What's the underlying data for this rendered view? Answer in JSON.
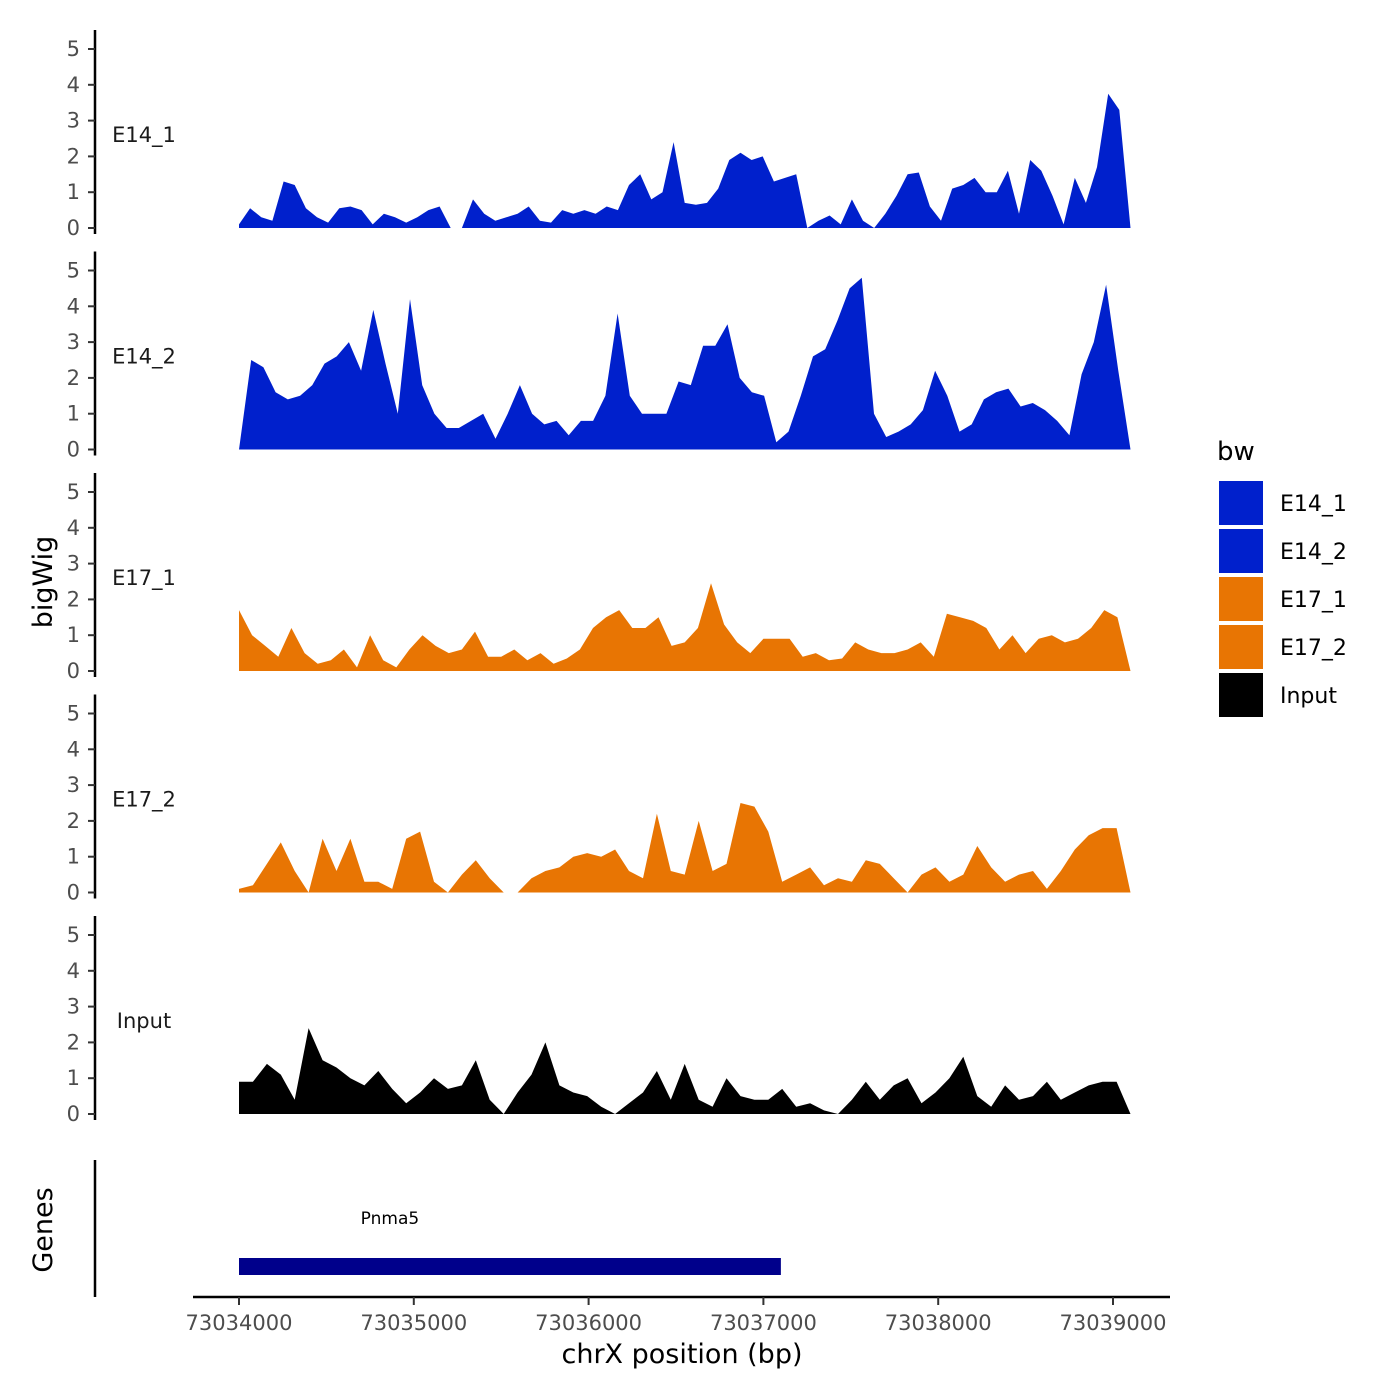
{
  "chart_data": {
    "type": "area",
    "title": "",
    "ylabel": "bigWig",
    "xlabel": "chrX position (bp)",
    "ylim": [
      0,
      5.5
    ],
    "yticks": [
      0,
      1,
      2,
      3,
      4,
      5
    ],
    "xlim": [
      73033850,
      73039120
    ],
    "xticks": [
      73034000,
      73035000,
      73036000,
      73037000,
      73038000,
      73039000
    ],
    "xtick_labels": [
      "73034000",
      "73035000",
      "73036000",
      "73037000",
      "73038000",
      "73039000"
    ],
    "x_step": 100,
    "x_start": 73034000,
    "x_end": 73039100,
    "legend": {
      "title": "bw",
      "position": "right",
      "entries": [
        "E14_1",
        "E14_2",
        "E17_1",
        "E17_2",
        "Input"
      ]
    },
    "colors": {
      "E14_1": "#0020CC",
      "E14_2": "#0020CC",
      "E17_1": "#E87503",
      "E17_2": "#E87503",
      "Input": "#000000"
    },
    "series": [
      {
        "name": "E14_1",
        "values": [
          0.1,
          0.55,
          0.3,
          0.2,
          1.3,
          1.2,
          0.55,
          0.3,
          0.15,
          0.55,
          0.6,
          0.5,
          0.1,
          0.4,
          0.3,
          0.15,
          0.3,
          0.5,
          0.6,
          0.0,
          0.0,
          0.8,
          0.4,
          0.2,
          0.3,
          0.4,
          0.6,
          0.2,
          0.15,
          0.5,
          0.4,
          0.5,
          0.4,
          0.6,
          0.5,
          1.2,
          1.5,
          0.8,
          1.0,
          2.4,
          0.7,
          0.65,
          0.7,
          1.1,
          1.9,
          2.1,
          1.9,
          2.0,
          1.3,
          1.4,
          1.5,
          0.0,
          0.2,
          0.35,
          0.1,
          0.8,
          0.2,
          0.0,
          0.4,
          0.9,
          1.5,
          1.55,
          0.6,
          0.2,
          1.1,
          1.2,
          1.4,
          1.0,
          1.0,
          1.6,
          0.4,
          1.9,
          1.6,
          0.9,
          0.1,
          1.4,
          0.7,
          1.7,
          3.75,
          3.3,
          0.0
        ]
      },
      {
        "name": "E14_2",
        "values": [
          0.0,
          2.5,
          2.3,
          1.6,
          1.4,
          1.5,
          1.8,
          2.4,
          2.6,
          3.0,
          2.2,
          3.9,
          2.4,
          1.0,
          4.2,
          1.8,
          1.0,
          0.6,
          0.6,
          0.8,
          1.0,
          0.3,
          1.0,
          1.8,
          1.0,
          0.7,
          0.8,
          0.4,
          0.8,
          0.8,
          1.5,
          3.8,
          1.5,
          1.0,
          1.0,
          1.0,
          1.9,
          1.8,
          2.9,
          2.9,
          3.5,
          2.0,
          1.6,
          1.5,
          0.2,
          0.5,
          1.5,
          2.6,
          2.8,
          3.6,
          4.5,
          4.8,
          1.0,
          0.35,
          0.5,
          0.7,
          1.1,
          2.2,
          1.5,
          0.5,
          0.7,
          1.4,
          1.6,
          1.7,
          1.2,
          1.3,
          1.1,
          0.8,
          0.4,
          2.1,
          3.0,
          4.6,
          2.2,
          0.0
        ]
      },
      {
        "name": "E17_1",
        "values": [
          1.7,
          1.0,
          0.7,
          0.4,
          1.2,
          0.5,
          0.2,
          0.3,
          0.6,
          0.1,
          1.0,
          0.3,
          0.1,
          0.6,
          1.0,
          0.7,
          0.5,
          0.6,
          1.1,
          0.4,
          0.4,
          0.6,
          0.3,
          0.5,
          0.2,
          0.35,
          0.6,
          1.2,
          1.5,
          1.7,
          1.2,
          1.2,
          1.5,
          0.7,
          0.8,
          1.2,
          2.45,
          1.3,
          0.8,
          0.5,
          0.9,
          0.9,
          0.9,
          0.4,
          0.5,
          0.3,
          0.35,
          0.8,
          0.6,
          0.5,
          0.5,
          0.6,
          0.8,
          0.4,
          1.6,
          1.5,
          1.4,
          1.2,
          0.6,
          1.0,
          0.5,
          0.9,
          1.0,
          0.8,
          0.9,
          1.2,
          1.7,
          1.5,
          0.0
        ]
      },
      {
        "name": "E17_2",
        "values": [
          0.1,
          0.2,
          0.8,
          1.4,
          0.6,
          0.0,
          1.5,
          0.6,
          1.5,
          0.3,
          0.3,
          0.1,
          1.5,
          1.7,
          0.3,
          0.0,
          0.5,
          0.9,
          0.4,
          0.0,
          0.0,
          0.4,
          0.6,
          0.7,
          1.0,
          1.1,
          1.0,
          1.2,
          0.6,
          0.4,
          2.2,
          0.6,
          0.5,
          2.0,
          0.6,
          0.8,
          2.5,
          2.4,
          1.7,
          0.3,
          0.5,
          0.7,
          0.2,
          0.4,
          0.3,
          0.9,
          0.8,
          0.4,
          0.0,
          0.5,
          0.7,
          0.3,
          0.5,
          1.3,
          0.7,
          0.3,
          0.5,
          0.6,
          0.1,
          0.6,
          1.2,
          1.6,
          1.8,
          1.8,
          0.0
        ]
      },
      {
        "name": "Input",
        "values": [
          0.9,
          0.9,
          1.4,
          1.1,
          0.4,
          2.4,
          1.5,
          1.3,
          1.0,
          0.8,
          1.2,
          0.7,
          0.3,
          0.6,
          1.0,
          0.7,
          0.8,
          1.5,
          0.4,
          0.0,
          0.6,
          1.1,
          2.0,
          0.8,
          0.6,
          0.5,
          0.2,
          0.0,
          0.3,
          0.6,
          1.2,
          0.4,
          1.4,
          0.4,
          0.2,
          1.0,
          0.5,
          0.4,
          0.4,
          0.7,
          0.2,
          0.3,
          0.1,
          0.0,
          0.4,
          0.9,
          0.4,
          0.8,
          1.0,
          0.3,
          0.6,
          1.0,
          1.6,
          0.5,
          0.2,
          0.8,
          0.4,
          0.5,
          0.9,
          0.4,
          0.6,
          0.8,
          0.9,
          0.9,
          0.0
        ]
      }
    ],
    "genes": {
      "label": "Genes",
      "items": [
        {
          "name": "Pnma5",
          "start": 73034000,
          "end": 73037100
        }
      ]
    }
  }
}
